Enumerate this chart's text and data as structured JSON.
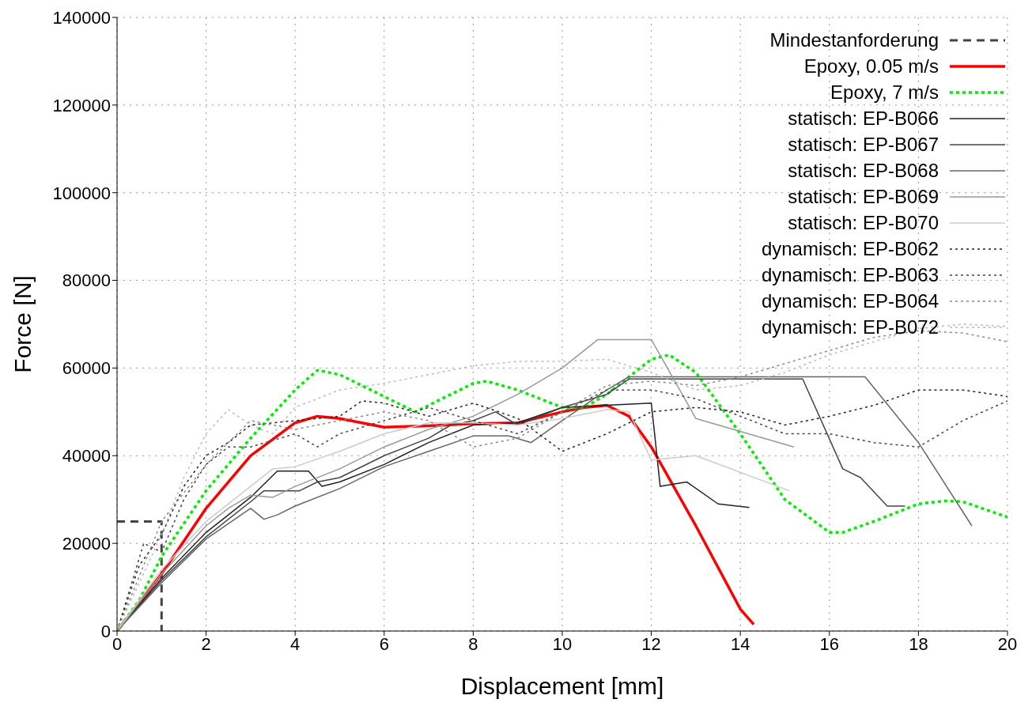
{
  "chart_data": {
    "type": "line",
    "xlabel": "Displacement [mm]",
    "ylabel": "Force [N]",
    "xlim": [
      0,
      20
    ],
    "ylim": [
      0,
      140000
    ],
    "xticks": [
      0,
      2,
      4,
      6,
      8,
      10,
      12,
      14,
      16,
      18,
      20
    ],
    "yticks": [
      0,
      20000,
      40000,
      60000,
      80000,
      100000,
      120000,
      140000
    ],
    "grid": true,
    "legend": "top right",
    "marker": "none",
    "series": [
      {
        "name": "Mindestanforderung",
        "color": "#444444",
        "line_style": "dashed",
        "x": [
          0,
          1,
          1
        ],
        "values": [
          25000,
          25000,
          0
        ]
      },
      {
        "name": "Epoxy, 0.05 m/s",
        "color": "#ff0000",
        "line_style": "solid",
        "x": [
          0,
          1,
          2,
          3,
          4,
          4.5,
          5,
          6,
          7,
          8,
          9,
          10,
          10.5,
          11,
          11.5,
          12,
          13,
          14,
          14.3
        ],
        "values": [
          0,
          13000,
          28000,
          40000,
          47500,
          49000,
          48500,
          46500,
          46800,
          47300,
          47500,
          50000,
          51000,
          51500,
          49000,
          42000,
          24000,
          5000,
          1500
        ]
      },
      {
        "name": "Epoxy, 7 m/s",
        "color": "#00ee00",
        "line_style": "dotted",
        "x": [
          0,
          0.5,
          1,
          2,
          3,
          4,
          4.5,
          5,
          6,
          6.7,
          7,
          8,
          8.3,
          9,
          10,
          10.5,
          11,
          12,
          12.4,
          13,
          14,
          15,
          16,
          16.3,
          17,
          18,
          18.6,
          19,
          20
        ],
        "values": [
          0,
          7000,
          17000,
          32000,
          44000,
          55000,
          59500,
          58500,
          53500,
          50000,
          51500,
          56500,
          57000,
          55000,
          51000,
          51000,
          54000,
          62000,
          63000,
          59000,
          45000,
          30000,
          22500,
          22500,
          25000,
          29000,
          29700,
          29500,
          26000
        ]
      },
      {
        "name": "statisch: EP-B066",
        "color": "#222222",
        "line_style": "solid",
        "x": [
          0,
          1,
          2,
          3,
          3.6,
          4.3,
          4.6,
          5,
          6,
          7,
          8,
          9,
          10,
          11,
          12,
          12.2,
          12.8,
          13.5,
          14.2
        ],
        "values": [
          0,
          12000,
          22500,
          30500,
          36500,
          36500,
          33000,
          34000,
          38000,
          43000,
          47000,
          47500,
          51000,
          51500,
          52000,
          33000,
          34000,
          29000,
          28200
        ]
      },
      {
        "name": "statisch: EP-B067",
        "color": "#444444",
        "line_style": "solid",
        "x": [
          0,
          1,
          2,
          3,
          3.3,
          4.1,
          4.5,
          5,
          6,
          7,
          7.5,
          8,
          8.5,
          9,
          10,
          11,
          11.5,
          15.4,
          16.3,
          16.7,
          17.3,
          17.7
        ],
        "values": [
          0,
          11500,
          21500,
          29500,
          32000,
          32000,
          34000,
          35000,
          40000,
          44000,
          47000,
          48000,
          50000,
          47000,
          51000,
          54000,
          57500,
          57500,
          37000,
          35000,
          28500,
          28500
        ]
      },
      {
        "name": "statisch: EP-B068",
        "color": "#666666",
        "line_style": "solid",
        "x": [
          0,
          1,
          2,
          3,
          3.3,
          3.6,
          4,
          5,
          6,
          7,
          8,
          8.8,
          9.3,
          10,
          11,
          11.5,
          16.8,
          18,
          19.2
        ],
        "values": [
          0,
          11000,
          21000,
          28000,
          25500,
          26500,
          28500,
          32500,
          37500,
          41000,
          44500,
          44500,
          43000,
          48000,
          55000,
          58000,
          58000,
          43000,
          24000
        ]
      },
      {
        "name": "statisch: EP-B069",
        "color": "#999999",
        "line_style": "solid",
        "x": [
          0,
          1,
          2,
          2.5,
          3,
          3.5,
          4,
          5,
          6,
          7,
          8,
          9,
          10,
          10.8,
          12,
          13,
          15.2
        ],
        "values": [
          0,
          13000,
          24000,
          28000,
          31000,
          30500,
          33000,
          37000,
          42000,
          46000,
          49000,
          54000,
          60000,
          66500,
          66500,
          48500,
          42000
        ]
      },
      {
        "name": "statisch: EP-B070",
        "color": "#cccccc",
        "line_style": "solid",
        "x": [
          0,
          1,
          2,
          3,
          3.5,
          4,
          5,
          6,
          7,
          8,
          9,
          10,
          11,
          11.5,
          12,
          13,
          15.1
        ],
        "values": [
          0,
          14000,
          25000,
          33000,
          37000,
          37500,
          41000,
          45000,
          47500,
          47500,
          47000,
          48500,
          50500,
          50000,
          39000,
          40000,
          32000
        ]
      },
      {
        "name": "dynamisch: EP-B062",
        "color": "#222222",
        "line_style": "dotted",
        "x": [
          0,
          0.5,
          1,
          1.5,
          2,
          2.5,
          3,
          4,
          5,
          5.5,
          6,
          7,
          8,
          9,
          10,
          11,
          12,
          13,
          14,
          15,
          16,
          17,
          18,
          19,
          20
        ],
        "values": [
          0,
          15000,
          22000,
          33000,
          40000,
          43000,
          47000,
          48000,
          49000,
          52500,
          52000,
          49000,
          52000,
          48500,
          41000,
          45000,
          50000,
          51000,
          50000,
          47000,
          49000,
          51500,
          55000,
          55000,
          53500
        ]
      },
      {
        "name": "dynamisch: EP-B063",
        "color": "#444444",
        "line_style": "dotted",
        "x": [
          0,
          0.6,
          1,
          1.5,
          2,
          2.5,
          3,
          4,
          4.5,
          5,
          6,
          7,
          8,
          9,
          10,
          11,
          12,
          13,
          14,
          15,
          16,
          17,
          18,
          19,
          20
        ],
        "values": [
          0,
          20000,
          18000,
          30000,
          38000,
          42000,
          42000,
          45000,
          42000,
          45000,
          48000,
          51000,
          48000,
          45000,
          50000,
          55000,
          55000,
          53000,
          49000,
          45000,
          45000,
          43000,
          42000,
          48000,
          52500
        ]
      },
      {
        "name": "dynamisch: EP-B064",
        "color": "#888888",
        "line_style": "dotted",
        "x": [
          0,
          1,
          2,
          3,
          4,
          5,
          6,
          7,
          8,
          9,
          10,
          11,
          12,
          13,
          14,
          15,
          16,
          17,
          18,
          19,
          20
        ],
        "values": [
          0,
          25000,
          38000,
          48000,
          46000,
          48000,
          50000,
          48000,
          42000,
          44000,
          50000,
          56000,
          57000,
          56000,
          58000,
          61000,
          64000,
          67000,
          68500,
          68000,
          66000
        ]
      },
      {
        "name": "dynamisch: EP-B072",
        "color": "#bbbbbb",
        "line_style": "dotted",
        "x": [
          0,
          1,
          1.5,
          2,
          2.5,
          3,
          3.5,
          4,
          5,
          6,
          7,
          8,
          9,
          10,
          11,
          12,
          13,
          14,
          15,
          16,
          17,
          18,
          19,
          20
        ],
        "values": [
          0,
          22000,
          35000,
          45000,
          50500,
          47000,
          45000,
          51000,
          55000,
          56500,
          58500,
          60500,
          61500,
          61500,
          62000,
          59000,
          55000,
          56000,
          59000,
          63000,
          66000,
          69000,
          70000,
          69500
        ]
      }
    ]
  }
}
